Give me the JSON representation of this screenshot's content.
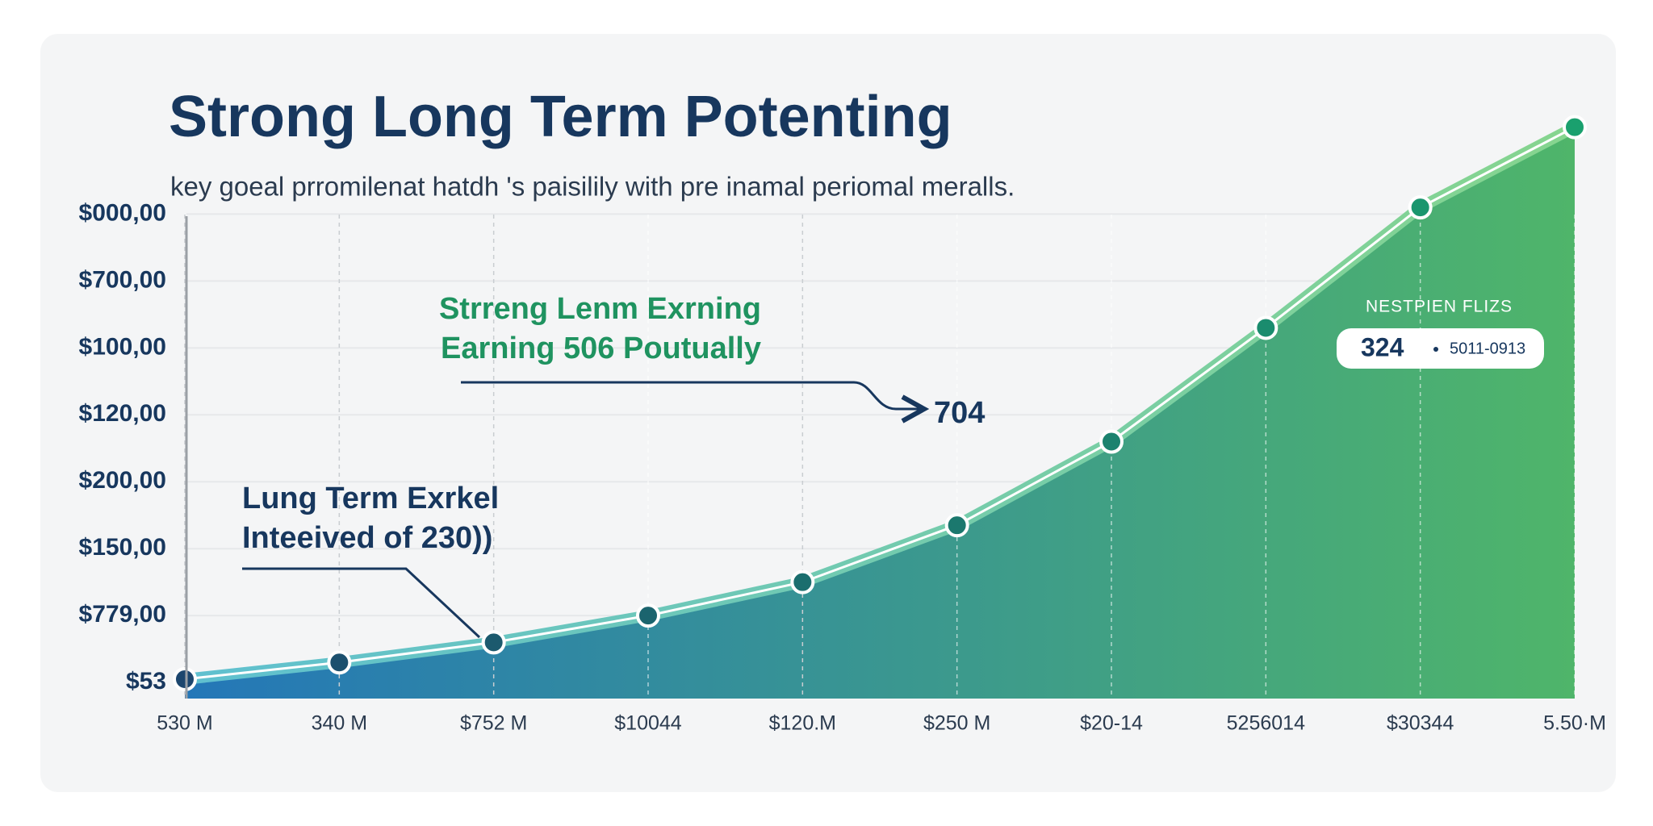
{
  "chart_data": {
    "type": "area",
    "title": "Strong Long Term Potenting",
    "subtitle": "key goeal prromilenat hatdh 's paisilily with pre inamal periomal  meralls.",
    "categories": [
      "530 M",
      "340 M",
      "$752 M",
      "$10044",
      "$120.M",
      "$250 M",
      "$20-14",
      "5256014",
      "$30344",
      "5.50·M"
    ],
    "values": [
      0.05,
      0.3,
      0.6,
      1.0,
      1.5,
      2.35,
      3.6,
      5.3,
      7.1,
      8.3
    ],
    "ylim": [
      -0.3,
      8.5
    ],
    "yticks": [
      {
        "value": 0,
        "label": "$53"
      },
      {
        "value": 1,
        "label": "$779,00"
      },
      {
        "value": 2,
        "label": "$150,00"
      },
      {
        "value": 3,
        "label": "$200,00"
      },
      {
        "value": 4,
        "label": "$120,00"
      },
      {
        "value": 5,
        "label": "$100,00"
      },
      {
        "value": 6,
        "label": "$700,00"
      },
      {
        "value": 7,
        "label": "$000,00"
      }
    ],
    "grid": true,
    "gradient": [
      "#2477b8",
      "#4fb56a"
    ],
    "annotations": [
      {
        "lines": [
          "Strreng Lenm Exrning",
          "Earning 506 Poutually"
        ],
        "target": "704"
      },
      {
        "lines": [
          "Lung Term Exrkel",
          "Inteeived of 230))"
        ]
      }
    ],
    "callout": {
      "title": "NESTPIEN FLIZS",
      "value": "324",
      "detail": "5011-0913"
    }
  }
}
